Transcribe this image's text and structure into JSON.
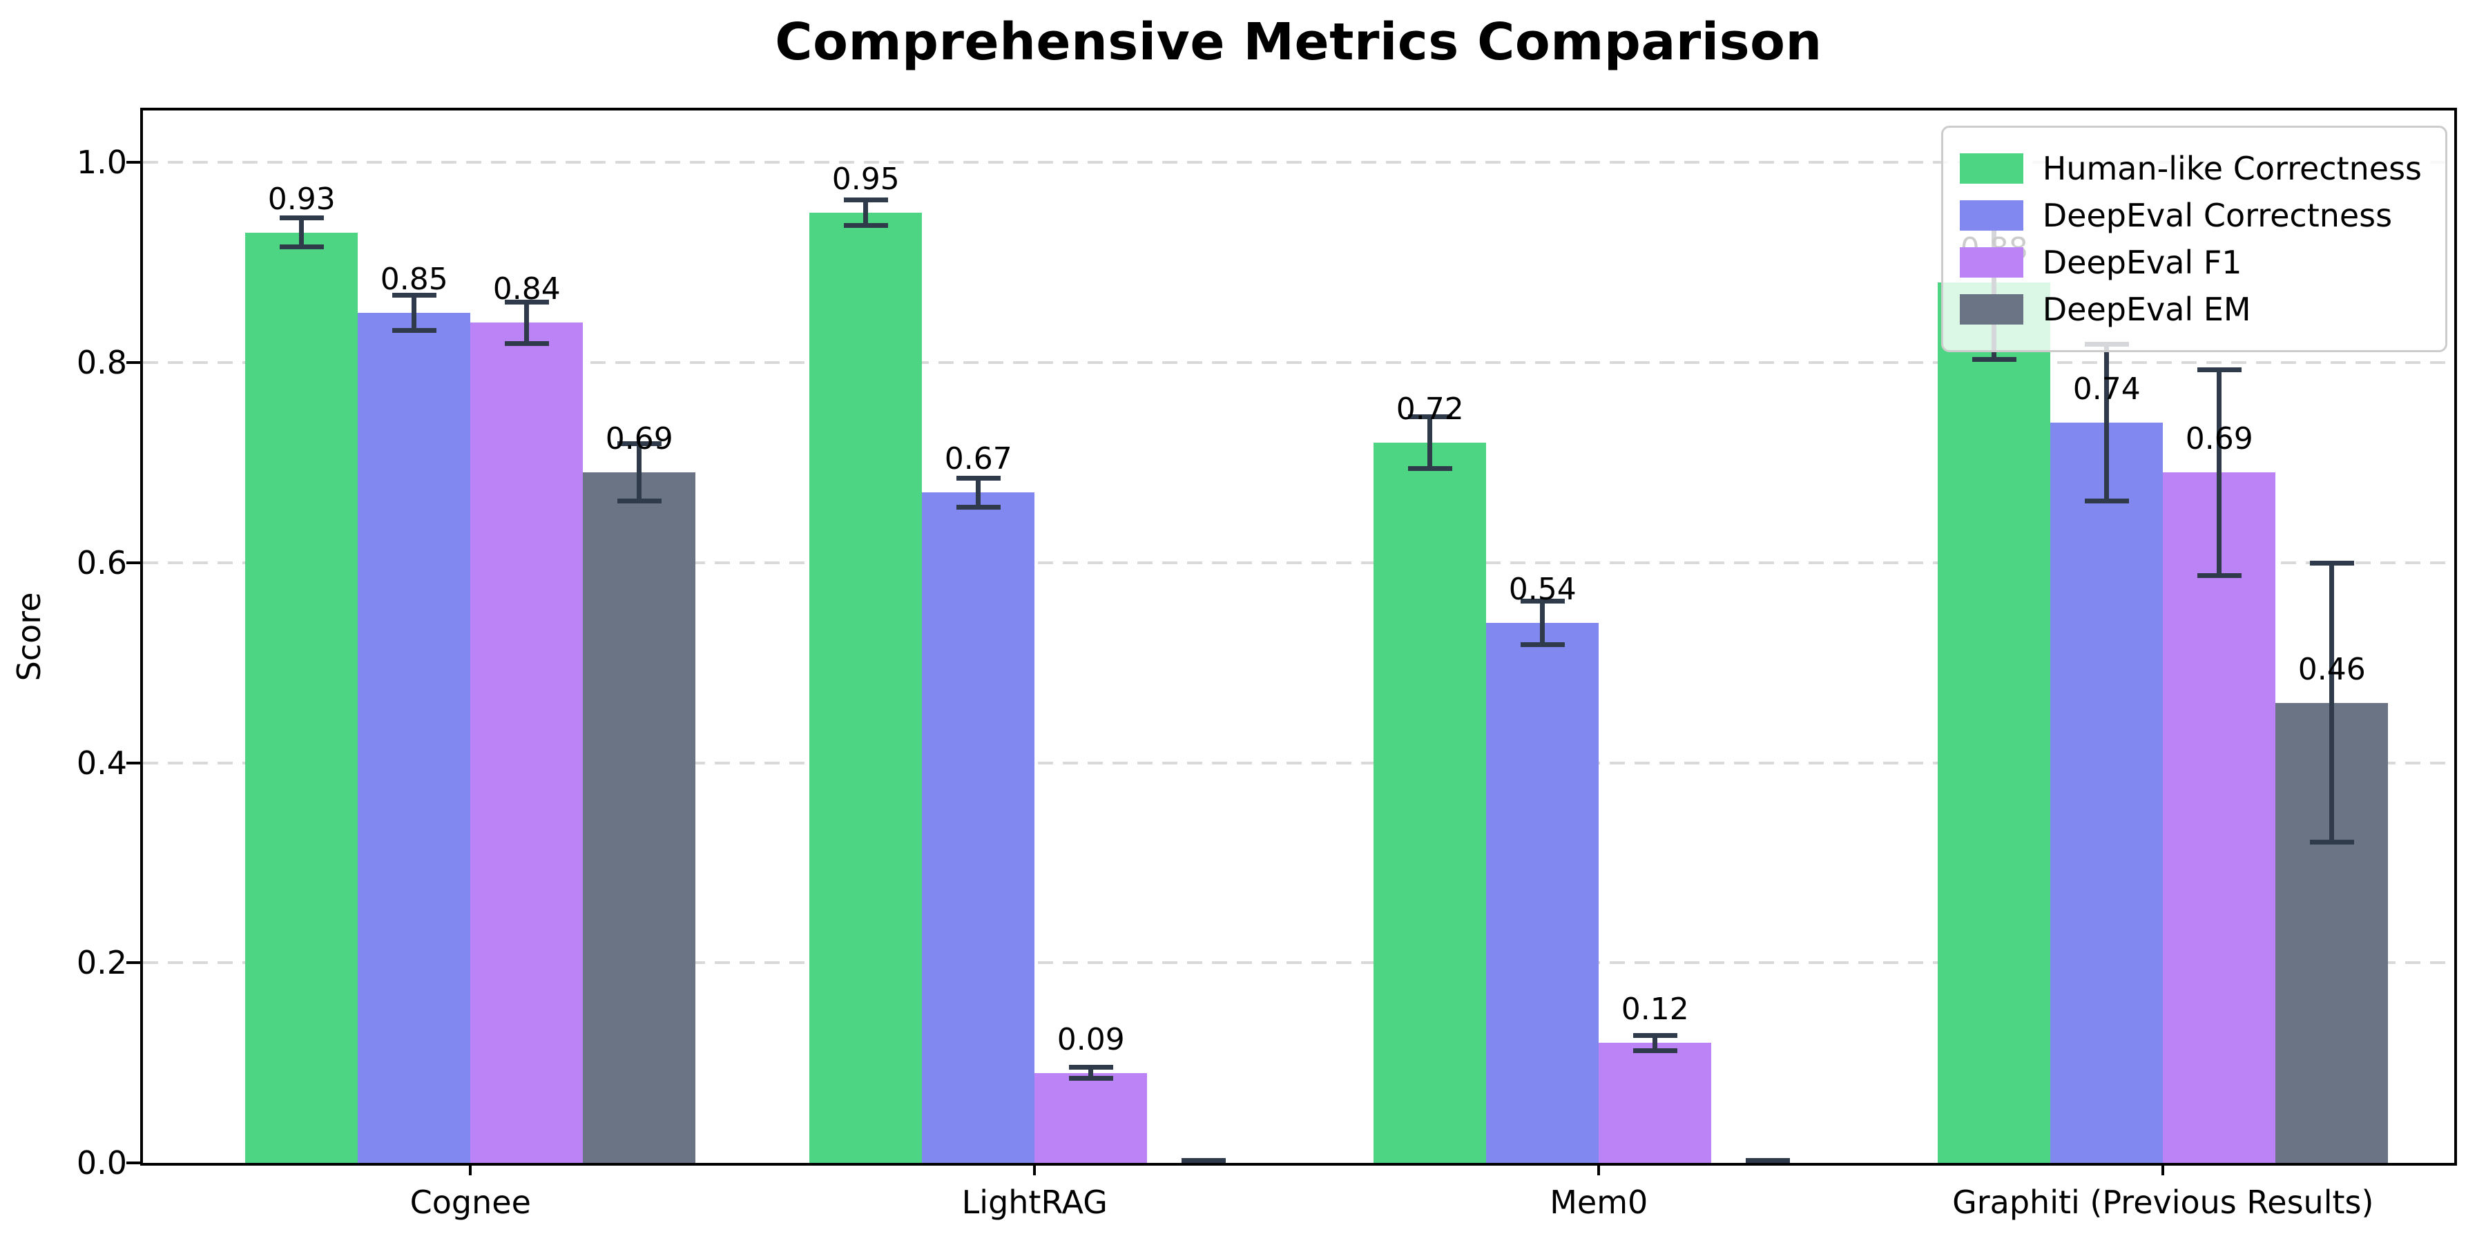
{
  "title": "Comprehensive Metrics Comparison",
  "chart_data": {
    "type": "bar",
    "title": "Comprehensive Metrics Comparison",
    "xlabel": "",
    "ylabel": "Score",
    "categories": [
      "Cognee",
      "LightRAG",
      "Mem0",
      "Graphiti (Previous Results)"
    ],
    "series": [
      {
        "name": "Human-like Correctness",
        "color": "#4ed583",
        "values": [
          0.93,
          0.95,
          0.72,
          0.88
        ],
        "errors": [
          0.015,
          0.013,
          0.026,
          0.077
        ],
        "labels": [
          "0.93",
          "0.95",
          "0.72",
          "0.88"
        ]
      },
      {
        "name": "DeepEval Correctness",
        "color": "#8189f0",
        "values": [
          0.85,
          0.67,
          0.54,
          0.74
        ],
        "errors": [
          0.018,
          0.015,
          0.022,
          0.079
        ],
        "labels": [
          "0.85",
          "0.67",
          "0.54",
          "0.74"
        ]
      },
      {
        "name": "DeepEval F1",
        "color": "#bb83f5",
        "values": [
          0.84,
          0.09,
          0.12,
          0.69
        ],
        "errors": [
          0.021,
          0.006,
          0.008,
          0.103
        ],
        "labels": [
          "0.84",
          "0.09",
          "0.12",
          "0.69"
        ]
      },
      {
        "name": "DeepEval EM",
        "color": "#6b7484",
        "values": [
          0.69,
          0.0,
          0.0,
          0.46
        ],
        "errors": [
          0.029,
          0.003,
          0.003,
          0.14
        ],
        "labels": [
          "0.69",
          "",
          "",
          "0.46"
        ]
      }
    ],
    "yticks": [
      0.0,
      0.2,
      0.4,
      0.6,
      0.8,
      1.0
    ],
    "ytick_labels": [
      "0.0",
      "0.2",
      "0.4",
      "0.6",
      "0.8",
      "1.0"
    ],
    "ylim": [
      0,
      1.052
    ],
    "grid": "horizontal dashed",
    "legend_position": "upper right",
    "colors": {
      "error_bar": "#2f3a4a",
      "grid": "#d9d9d9",
      "spine": "#000000",
      "background": "#ffffff",
      "text": "#000000",
      "legend_border": "#cccccc"
    }
  }
}
